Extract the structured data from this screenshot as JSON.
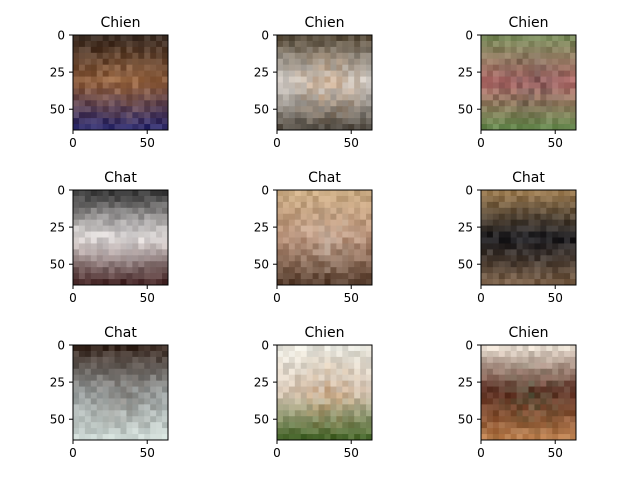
{
  "chart_data": [
    {
      "type": "image",
      "title": "Chien",
      "xticks": [
        "0",
        "50"
      ],
      "yticks": [
        "0",
        "25",
        "50"
      ],
      "xlim": [
        0,
        64
      ],
      "ylim": [
        64,
        0
      ],
      "colors": {
        "top": "#3a2b22",
        "mid": "#8a5a3a",
        "bottom": "#2d2a6a",
        "accent": "#c89060"
      }
    },
    {
      "type": "image",
      "title": "Chien",
      "xticks": [
        "0",
        "50"
      ],
      "yticks": [
        "0",
        "25",
        "50"
      ],
      "xlim": [
        0,
        64
      ],
      "ylim": [
        64,
        0
      ],
      "colors": {
        "top": "#5a5040",
        "mid": "#d8d4d0",
        "bottom": "#555048",
        "accent": "#c07a3a"
      }
    },
    {
      "type": "image",
      "title": "Chien",
      "xticks": [
        "0",
        "50"
      ],
      "yticks": [
        "0",
        "25",
        "50"
      ],
      "xlim": [
        0,
        64
      ],
      "ylim": [
        64,
        0
      ],
      "colors": {
        "top": "#7a8a5a",
        "mid": "#b87070",
        "bottom": "#6a8a50",
        "accent": "#2a2a30"
      }
    },
    {
      "type": "image",
      "title": "Chat",
      "xticks": [
        "0",
        "50"
      ],
      "yticks": [
        "0",
        "25",
        "50"
      ],
      "xlim": [
        0,
        64
      ],
      "ylim": [
        64,
        0
      ],
      "colors": {
        "top": "#3a3a3a",
        "mid": "#ebe6e4",
        "bottom": "#4a2a2a",
        "accent": "#8a8a90"
      }
    },
    {
      "type": "image",
      "title": "Chat",
      "xticks": [
        "0",
        "50"
      ],
      "yticks": [
        "0",
        "25",
        "50"
      ],
      "xlim": [
        0,
        64
      ],
      "ylim": [
        64,
        0
      ],
      "colors": {
        "top": "#c8a880",
        "mid": "#b89078",
        "bottom": "#5a4030",
        "accent": "#e0e0d8"
      }
    },
    {
      "type": "image",
      "title": "Chat",
      "xticks": [
        "0",
        "50"
      ],
      "yticks": [
        "0",
        "25",
        "50"
      ],
      "xlim": [
        0,
        64
      ],
      "ylim": [
        64,
        0
      ],
      "colors": {
        "top": "#9a7a50",
        "mid": "#1c1c20",
        "bottom": "#7a6048",
        "accent": "#2a2a30"
      }
    },
    {
      "type": "image",
      "title": "Chat",
      "xticks": [
        "0",
        "50"
      ],
      "yticks": [
        "0",
        "25",
        "50"
      ],
      "xlim": [
        0,
        64
      ],
      "ylim": [
        64,
        0
      ],
      "colors": {
        "top": "#3a2a22",
        "mid": "#9aa0a0",
        "bottom": "#d0dcd8",
        "accent": "#6a5a50"
      }
    },
    {
      "type": "image",
      "title": "Chien",
      "xticks": [
        "0",
        "50"
      ],
      "yticks": [
        "0",
        "25",
        "50"
      ],
      "xlim": [
        0,
        64
      ],
      "ylim": [
        64,
        0
      ],
      "colors": {
        "top": "#e8e8e0",
        "mid": "#d8c8b8",
        "bottom": "#4a6a30",
        "accent": "#b8783a"
      }
    },
    {
      "type": "image",
      "title": "Chien",
      "xticks": [
        "0",
        "50"
      ],
      "yticks": [
        "0",
        "25",
        "50"
      ],
      "xlim": [
        0,
        64
      ],
      "ylim": [
        64,
        0
      ],
      "colors": {
        "top": "#e8dcd0",
        "mid": "#5a2a1e",
        "bottom": "#b87a4a",
        "accent": "#4a7a5a"
      }
    }
  ]
}
